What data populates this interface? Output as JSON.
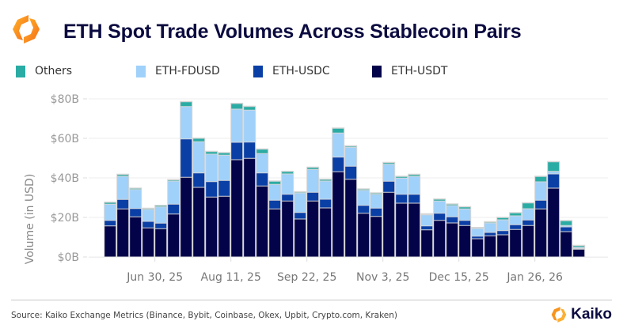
{
  "header": {
    "title": "ETH Spot Trade Volumes Across Stablecoin Pairs",
    "logo_icon": "kaiko-logo-icon"
  },
  "footer": {
    "source": "Source: Kaiko Exchange Metrics (Binance, Bybit, Coinbase, Okex, Upbit, Crypto.com, Kraken)",
    "brand": "Kaiko"
  },
  "chart_data": {
    "type": "bar",
    "stacked": true,
    "title": "ETH Spot Trade Volumes Across Stablecoin Pairs",
    "xlabel": "",
    "ylabel": "Volume (in USD)",
    "ylim": [
      0,
      80
    ],
    "yticks": [
      0,
      20,
      40,
      60,
      80
    ],
    "ytick_labels": [
      "$0B",
      "$20B",
      "$40B",
      "$60B",
      "$80B"
    ],
    "grid": "horizontal",
    "legend_position": "top",
    "x_frequency": "weekly",
    "x_start": "Jun 2, 25",
    "xtick_labels": [
      {
        "index": 4,
        "label": "Jun 30, 25"
      },
      {
        "index": 10,
        "label": "Aug 11, 25"
      },
      {
        "index": 16,
        "label": "Sep 22, 25"
      },
      {
        "index": 22,
        "label": "Nov 3, 25"
      },
      {
        "index": 28,
        "label": "Dec 15, 25"
      },
      {
        "index": 34,
        "label": "Jan 26, 26"
      }
    ],
    "units": "USD billions",
    "series": [
      {
        "name": "ETH-USDT",
        "color": "#03034a",
        "values": [
          15.7,
          24.3,
          20.3,
          14.7,
          14.3,
          21.7,
          40.3,
          35.2,
          30.3,
          30.7,
          49.2,
          49.9,
          35.9,
          24.3,
          28.3,
          19.2,
          28.3,
          24.8,
          43.1,
          39.3,
          22.1,
          20.5,
          32.7,
          27.2,
          27.2,
          13.7,
          18.5,
          17.2,
          15.9,
          9.2,
          10.7,
          11.2,
          13.9,
          15.9,
          24.3,
          34.8,
          12.8,
          3.9
        ]
      },
      {
        "name": "ETH-USDC",
        "color": "#0a3fa6",
        "values": [
          2.8,
          4.8,
          4.2,
          3.3,
          2.8,
          5.0,
          19.4,
          7.3,
          7.8,
          8.0,
          8.8,
          8.2,
          6.6,
          4.4,
          3.4,
          3.3,
          4.4,
          4.4,
          7.4,
          6.6,
          4.0,
          4.2,
          5.6,
          4.5,
          4.5,
          2.0,
          3.6,
          3.1,
          2.6,
          1.3,
          1.7,
          2.1,
          2.4,
          2.8,
          4.4,
          7.2,
          2.4,
          0.4
        ]
      },
      {
        "name": "ETH-FDUSD",
        "color": "#9fd1fb",
        "values": [
          8.2,
          11.7,
          9.6,
          6.0,
          8.2,
          11.7,
          16.4,
          15.8,
          13.9,
          12.8,
          16.8,
          16.2,
          9.8,
          8.0,
          10.3,
          9.9,
          11.6,
          9.2,
          12.2,
          9.6,
          7.6,
          7.0,
          8.6,
          8.2,
          9.1,
          5.6,
          6.2,
          5.7,
          5.8,
          3.9,
          4.8,
          5.5,
          4.5,
          5.7,
          9.3,
          1.3,
          0.7,
          0.6
        ]
      },
      {
        "name": "Others",
        "color": "#2aaca4",
        "values": [
          0.9,
          0.9,
          0.6,
          0.5,
          0.7,
          0.6,
          2.4,
          1.7,
          1.3,
          1.2,
          2.8,
          1.8,
          2.2,
          1.6,
          1.2,
          0.5,
          1.0,
          0.8,
          2.4,
          0.6,
          0.6,
          0.6,
          0.8,
          0.8,
          0.9,
          0.4,
          0.9,
          0.7,
          1.0,
          0.4,
          0.5,
          1.1,
          1.5,
          2.9,
          2.7,
          4.8,
          2.4,
          0.8
        ]
      }
    ],
    "legend_order": [
      "Others",
      "ETH-FDUSD",
      "ETH-USDC",
      "ETH-USDT"
    ]
  }
}
